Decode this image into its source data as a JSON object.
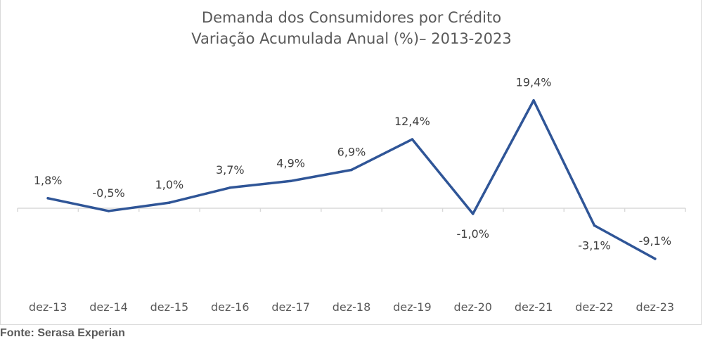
{
  "chart_data": {
    "type": "line",
    "title": "Demanda dos Consumidores por Crédito",
    "subtitle": "Variação Acumulada Anual (%)– 2013-2023",
    "xlabel": "",
    "ylabel": "",
    "categories": [
      "dez-13",
      "dez-14",
      "dez-15",
      "dez-16",
      "dez-17",
      "dez-18",
      "dez-19",
      "dez-20",
      "dez-21",
      "dez-22",
      "dez-23"
    ],
    "series": [
      {
        "name": "Variação Acumulada Anual (%)",
        "values": [
          1.8,
          -0.5,
          1.0,
          3.7,
          4.9,
          6.9,
          12.4,
          -1.0,
          19.4,
          -3.1,
          -9.1
        ],
        "labels": [
          "1,8%",
          "-0,5%",
          "1,0%",
          "3,7%",
          "4,9%",
          "6,9%",
          "12,4%",
          "-1,0%",
          "19,4%",
          "-3,1%",
          "-9,1%"
        ],
        "color": "#2f5597"
      }
    ],
    "ylim": [
      -12,
      23
    ],
    "grid": false,
    "legend": "none"
  },
  "source": "Fonte: Serasa Experian"
}
